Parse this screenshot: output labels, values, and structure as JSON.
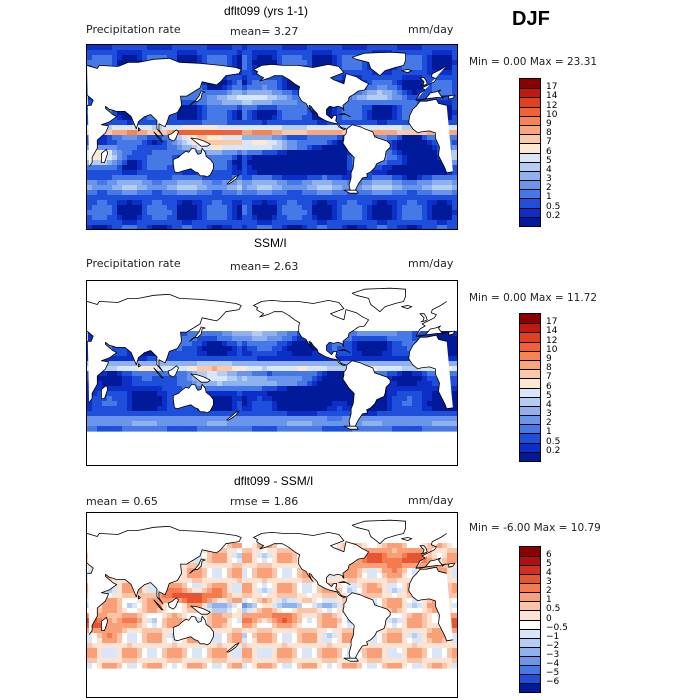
{
  "season": "DJF",
  "panels": [
    {
      "title": "dflt099 (yrs 1-1)",
      "left_text": "Precipitation rate",
      "mid_text": "mean=   3.27",
      "units": "mm/day",
      "min_max": "Min =    0.00 Max =  23.31",
      "colorbar_labels": [
        "17",
        "14",
        "12",
        "10",
        "9",
        "8",
        "7",
        "6",
        "5",
        "4",
        "3",
        "2",
        "1",
        "0.5",
        "0.2"
      ],
      "colorbar_colors": [
        "#8b0000",
        "#c0190f",
        "#e0401e",
        "#f26035",
        "#f7844f",
        "#f9a67a",
        "#fcc9a6",
        "#fde8d3",
        "#d8e6f7",
        "#b5cdf2",
        "#8fb2ee",
        "#6a95ea",
        "#4678e6",
        "#1d4fdb",
        "#0c2fc7",
        "#001a9a"
      ],
      "field": "precip"
    },
    {
      "title": "SSM/I",
      "left_text": "Precipitation rate",
      "mid_text": "mean=   2.63",
      "units": "mm/day",
      "min_max": "Min =    0.00 Max =  11.72",
      "colorbar_labels": [
        "17",
        "14",
        "12",
        "10",
        "9",
        "8",
        "7",
        "6",
        "5",
        "4",
        "3",
        "2",
        "1",
        "0.5",
        "0.2"
      ],
      "colorbar_colors": [
        "#8b0000",
        "#c0190f",
        "#e0401e",
        "#f26035",
        "#f7844f",
        "#f9a67a",
        "#fcc9a6",
        "#fde8d3",
        "#d8e6f7",
        "#b5cdf2",
        "#8fb2ee",
        "#6a95ea",
        "#4678e6",
        "#1d4fdb",
        "#0c2fc7",
        "#001a9a"
      ],
      "field": "obs"
    },
    {
      "title": "dflt099 - SSM/I",
      "left_text": "mean =    0.65",
      "mid_text": "rmse =    1.86",
      "units": "mm/day",
      "min_max": "Min =  -6.00 Max =  10.79",
      "colorbar_labels": [
        "6",
        "5",
        "4",
        "3",
        "2",
        "1",
        "0.5",
        "0",
        "−0.5",
        "−1",
        "−2",
        "−3",
        "−4",
        "−5",
        "−6"
      ],
      "colorbar_colors": [
        "#8b0000",
        "#b01010",
        "#d03020",
        "#e85532",
        "#f57a4e",
        "#f9a078",
        "#fcc4a6",
        "#fde3d3",
        "#ffffff",
        "#d8e6f7",
        "#b5cdf2",
        "#8fb2ee",
        "#6a95ea",
        "#4678e6",
        "#1d4fdb",
        "#001a9a"
      ],
      "field": "diff"
    }
  ]
}
